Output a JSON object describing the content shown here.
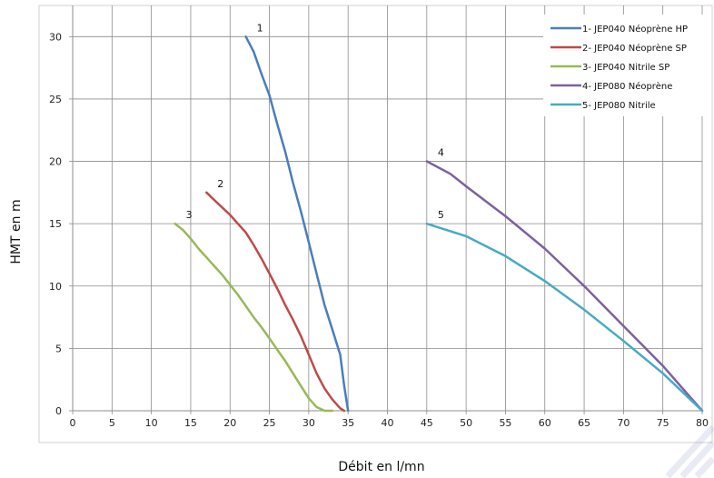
{
  "chart_data": {
    "type": "line",
    "xlabel": "Débit en l/mn",
    "ylabel": "HMT en m",
    "xlim": [
      0,
      80
    ],
    "ylim": [
      0,
      32.5
    ],
    "x_ticks": [
      "0",
      "5",
      "10",
      "15",
      "20",
      "25",
      "30",
      "35",
      "40",
      "45",
      "50",
      "55",
      "60",
      "65",
      "70",
      "75",
      "80"
    ],
    "y_ticks": [
      "0",
      "5",
      "10",
      "15",
      "20",
      "25",
      "30"
    ],
    "grid": true,
    "legend_position": "top-right",
    "series": [
      {
        "name": "1- JEP040 Néoprène HP",
        "label": "1",
        "color": "#4a7ebb",
        "points": [
          [
            22,
            30
          ],
          [
            23,
            28.8
          ],
          [
            24,
            27
          ],
          [
            25,
            25.3
          ],
          [
            26,
            23
          ],
          [
            27,
            20.8
          ],
          [
            28,
            18.3
          ],
          [
            29,
            16
          ],
          [
            30,
            13.5
          ],
          [
            31,
            11
          ],
          [
            32,
            8.5
          ],
          [
            33,
            6.5
          ],
          [
            34,
            4.5
          ],
          [
            34.5,
            2
          ],
          [
            35,
            0
          ]
        ]
      },
      {
        "name": "2- JEP040 Néoprène SP",
        "label": "2",
        "color": "#be4b48",
        "points": [
          [
            17,
            17.5
          ],
          [
            18,
            16.9
          ],
          [
            19,
            16.3
          ],
          [
            20,
            15.7
          ],
          [
            21,
            15
          ],
          [
            22,
            14.3
          ],
          [
            23,
            13.3
          ],
          [
            24,
            12.2
          ],
          [
            25,
            11
          ],
          [
            26,
            9.8
          ],
          [
            27,
            8.5
          ],
          [
            28,
            7.3
          ],
          [
            29,
            6
          ],
          [
            30,
            4.5
          ],
          [
            31,
            3
          ],
          [
            32,
            1.8
          ],
          [
            33,
            0.9
          ],
          [
            34,
            0.2
          ],
          [
            34.5,
            0
          ]
        ]
      },
      {
        "name": "3- JEP040 Nitrile SP",
        "label": "3",
        "color": "#98b954",
        "points": [
          [
            13,
            15
          ],
          [
            14,
            14.5
          ],
          [
            15,
            13.8
          ],
          [
            16,
            13
          ],
          [
            17,
            12.3
          ],
          [
            18,
            11.6
          ],
          [
            19,
            10.9
          ],
          [
            20,
            10.1
          ],
          [
            21,
            9.3
          ],
          [
            22,
            8.4
          ],
          [
            23,
            7.5
          ],
          [
            24,
            6.7
          ],
          [
            25,
            5.8
          ],
          [
            26,
            4.9
          ],
          [
            27,
            4
          ],
          [
            28,
            3
          ],
          [
            29,
            2
          ],
          [
            30,
            1
          ],
          [
            31,
            0.3
          ],
          [
            32,
            0
          ],
          [
            33,
            0
          ]
        ]
      },
      {
        "name": "4- JEP080 Néoprène",
        "label": "4",
        "color": "#7d60a0",
        "points": [
          [
            45,
            20
          ],
          [
            48,
            19
          ],
          [
            50,
            18
          ],
          [
            55,
            15.6
          ],
          [
            60,
            13
          ],
          [
            65,
            10
          ],
          [
            70,
            6.8
          ],
          [
            75,
            3.6
          ],
          [
            80,
            0
          ]
        ]
      },
      {
        "name": "5- JEP080 Nitrile",
        "label": "5",
        "color": "#46aac5",
        "points": [
          [
            45,
            15
          ],
          [
            48,
            14.4
          ],
          [
            50,
            14
          ],
          [
            55,
            12.4
          ],
          [
            60,
            10.4
          ],
          [
            65,
            8.1
          ],
          [
            70,
            5.6
          ],
          [
            75,
            3
          ],
          [
            80,
            0
          ]
        ]
      }
    ]
  }
}
